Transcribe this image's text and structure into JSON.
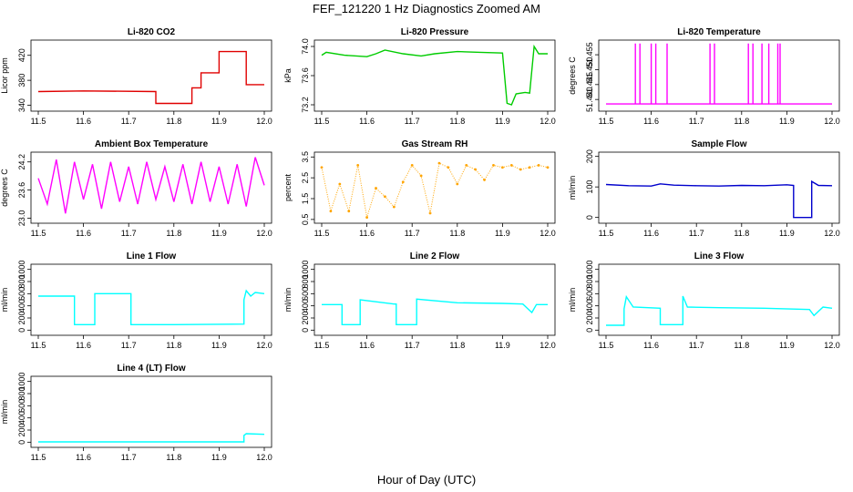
{
  "figure": {
    "title": "FEF_121220  1 Hz Diagnostics Zoomed AM",
    "xlabel": "Hour of Day (UTC)"
  },
  "chart_data": [
    {
      "type": "line",
      "title": "Li-820 CO2",
      "ylabel": "Licor ppm",
      "color": "#e00000",
      "xlim": [
        11.5,
        12.0
      ],
      "ylim": [
        335,
        440
      ],
      "xticks": [
        "11.5",
        "11.6",
        "11.7",
        "11.8",
        "11.9",
        "12.0"
      ],
      "yticks": [
        "340",
        "380",
        "420"
      ],
      "series": [
        {
          "x": [
            11.5,
            11.6,
            11.76,
            11.76,
            11.84,
            11.84,
            11.86,
            11.86,
            11.9,
            11.9,
            11.96,
            11.96,
            12.0
          ],
          "y": [
            362,
            363,
            362,
            343,
            343,
            368,
            368,
            392,
            392,
            426,
            426,
            373,
            373
          ]
        }
      ]
    },
    {
      "type": "line",
      "title": "Li-820 Pressure",
      "ylabel": "kPa",
      "color": "#00cc00",
      "xlim": [
        11.5,
        12.0
      ],
      "ylim": [
        73.15,
        74.05
      ],
      "xticks": [
        "11.5",
        "11.6",
        "11.7",
        "11.8",
        "11.9",
        "12.0"
      ],
      "yticks": [
        "73.2",
        "73.6",
        "74.0"
      ],
      "series": [
        {
          "x": [
            11.5,
            11.51,
            11.55,
            11.6,
            11.62,
            11.64,
            11.68,
            11.72,
            11.75,
            11.8,
            11.85,
            11.9,
            11.91,
            11.92,
            11.93,
            11.95,
            11.96,
            11.97,
            11.98,
            12.0
          ],
          "y": [
            73.88,
            73.92,
            73.88,
            73.86,
            73.9,
            73.95,
            73.9,
            73.87,
            73.9,
            73.93,
            73.92,
            73.91,
            73.22,
            73.2,
            73.35,
            73.37,
            73.36,
            74.0,
            73.9,
            73.9
          ]
        }
      ]
    },
    {
      "type": "line",
      "title": "Li-820 Temperature",
      "ylabel": "degrees C",
      "color": "#ff00ff",
      "xlim": [
        11.5,
        12.0
      ],
      "ylim": [
        51.437,
        51.459
      ],
      "xticks": [
        "11.5",
        "11.6",
        "11.7",
        "11.8",
        "11.9",
        "12.0"
      ],
      "yticks": [
        "51.440",
        "51.445",
        "51.450",
        "51.455"
      ],
      "series": [
        {
          "x": [
            11.5,
            11.565,
            11.565,
            11.565,
            11.575,
            11.575,
            11.575,
            11.6,
            11.6,
            11.6,
            11.61,
            11.61,
            11.61,
            11.635,
            11.635,
            11.635,
            11.73,
            11.73,
            11.73,
            11.74,
            11.74,
            11.74,
            11.815,
            11.815,
            11.815,
            11.825,
            11.825,
            11.825,
            11.845,
            11.845,
            11.845,
            11.86,
            11.86,
            11.86,
            11.88,
            11.88,
            11.88,
            11.885,
            11.885,
            11.885,
            12.0
          ],
          "y": [
            51.4385,
            51.4385,
            51.4588,
            51.4385,
            51.4385,
            51.4588,
            51.4385,
            51.4385,
            51.4588,
            51.4385,
            51.4385,
            51.4588,
            51.4385,
            51.4385,
            51.4588,
            51.4385,
            51.4385,
            51.4588,
            51.4385,
            51.4385,
            51.4588,
            51.4385,
            51.4385,
            51.4588,
            51.4385,
            51.4385,
            51.4588,
            51.4385,
            51.4385,
            51.4588,
            51.4385,
            51.4385,
            51.4588,
            51.4385,
            51.4385,
            51.4588,
            51.4385,
            51.4385,
            51.4588,
            51.4385,
            51.4385
          ]
        }
      ]
    },
    {
      "type": "line",
      "title": "Ambient Box Temperature",
      "ylabel": "degrees C",
      "color": "#ff00ff",
      "xlim": [
        11.5,
        12.0
      ],
      "ylim": [
        22.95,
        24.35
      ],
      "xticks": [
        "11.5",
        "11.6",
        "11.7",
        "11.8",
        "11.9",
        "12.0"
      ],
      "yticks": [
        "23.0",
        "23.6",
        "24.2"
      ],
      "series": [
        {
          "x": [
            11.5,
            11.52,
            11.54,
            11.56,
            11.58,
            11.6,
            11.62,
            11.64,
            11.66,
            11.68,
            11.7,
            11.72,
            11.74,
            11.76,
            11.78,
            11.8,
            11.82,
            11.84,
            11.86,
            11.88,
            11.9,
            11.92,
            11.94,
            11.96,
            11.98,
            12.0
          ],
          "y": [
            23.85,
            23.3,
            24.25,
            23.1,
            24.2,
            23.4,
            24.15,
            23.2,
            24.2,
            23.35,
            24.1,
            23.3,
            24.2,
            23.4,
            24.1,
            23.35,
            24.15,
            23.3,
            24.2,
            23.35,
            24.1,
            23.3,
            24.15,
            23.25,
            24.3,
            23.7
          ]
        }
      ]
    },
    {
      "type": "scatter",
      "title": "Gas Stream RH",
      "ylabel": "percent",
      "color": "#ffa500",
      "xlim": [
        11.5,
        12.0
      ],
      "ylim": [
        0.45,
        3.6
      ],
      "xticks": [
        "11.5",
        "11.6",
        "11.7",
        "11.8",
        "11.9",
        "12.0"
      ],
      "yticks": [
        "0.5",
        "1.5",
        "2.5",
        "3.5"
      ],
      "series": [
        {
          "x": [
            11.5,
            11.52,
            11.54,
            11.56,
            11.58,
            11.6,
            11.62,
            11.64,
            11.66,
            11.68,
            11.7,
            11.72,
            11.74,
            11.76,
            11.78,
            11.8,
            11.82,
            11.84,
            11.86,
            11.88,
            11.9,
            11.92,
            11.94,
            11.96,
            11.98,
            12.0
          ],
          "y": [
            3.0,
            0.9,
            2.2,
            0.9,
            3.1,
            0.6,
            2.0,
            1.6,
            1.1,
            2.3,
            3.1,
            2.6,
            0.8,
            3.2,
            3.0,
            2.2,
            3.1,
            2.9,
            2.4,
            3.1,
            3.0,
            3.1,
            2.9,
            3.0,
            3.1,
            3.0
          ]
        }
      ]
    },
    {
      "type": "line",
      "title": "Sample Flow",
      "ylabel": "ml/min",
      "color": "#0000cc",
      "xlim": [
        11.5,
        12.0
      ],
      "ylim": [
        -10,
        205
      ],
      "xticks": [
        "11.5",
        "11.6",
        "11.7",
        "11.8",
        "11.9",
        "12.0"
      ],
      "yticks": [
        "0",
        "100",
        "200"
      ],
      "series": [
        {
          "x": [
            11.5,
            11.55,
            11.6,
            11.62,
            11.65,
            11.7,
            11.75,
            11.8,
            11.85,
            11.9,
            11.915,
            11.915,
            11.95,
            11.955,
            11.955,
            11.97,
            12.0
          ],
          "y": [
            108,
            104,
            103,
            110,
            106,
            104,
            103,
            105,
            104,
            107,
            105,
            0,
            0,
            0,
            118,
            105,
            104
          ]
        }
      ]
    },
    {
      "type": "line",
      "title": "Line 1 Flow",
      "ylabel": "ml/min",
      "color": "#00ffff",
      "xlim": [
        11.5,
        12.0
      ],
      "ylim": [
        -40,
        1040
      ],
      "xticks": [
        "11.5",
        "11.6",
        "11.7",
        "11.8",
        "11.9",
        "12.0"
      ],
      "yticks": [
        "0",
        "200",
        "400",
        "600",
        "800",
        "1000"
      ],
      "series": [
        {
          "x": [
            11.5,
            11.58,
            11.58,
            11.625,
            11.625,
            11.7,
            11.705,
            11.705,
            11.8,
            11.955,
            11.955,
            11.96,
            11.97,
            11.98,
            12.0
          ],
          "y": [
            560,
            560,
            90,
            90,
            600,
            600,
            600,
            90,
            90,
            100,
            500,
            650,
            560,
            620,
            600
          ]
        }
      ]
    },
    {
      "type": "line",
      "title": "Line 2 Flow",
      "ylabel": "ml/min",
      "color": "#00ffff",
      "xlim": [
        11.5,
        12.0
      ],
      "ylim": [
        -40,
        1040
      ],
      "xticks": [
        "11.5",
        "11.6",
        "11.7",
        "11.8",
        "11.9",
        "12.0"
      ],
      "yticks": [
        "0",
        "200",
        "400",
        "600",
        "800",
        "1000"
      ],
      "series": [
        {
          "x": [
            11.5,
            11.545,
            11.545,
            11.585,
            11.585,
            11.66,
            11.665,
            11.665,
            11.71,
            11.71,
            11.8,
            11.9,
            11.945,
            11.965,
            11.975,
            12.0
          ],
          "y": [
            420,
            420,
            90,
            90,
            500,
            430,
            430,
            90,
            90,
            510,
            450,
            440,
            430,
            290,
            420,
            420
          ]
        }
      ]
    },
    {
      "type": "line",
      "title": "Line 3 Flow",
      "ylabel": "ml/min",
      "color": "#00ffff",
      "xlim": [
        11.5,
        12.0
      ],
      "ylim": [
        -40,
        1040
      ],
      "xticks": [
        "11.5",
        "11.6",
        "11.7",
        "11.8",
        "11.9",
        "12.0"
      ],
      "yticks": [
        "0",
        "200",
        "400",
        "600",
        "800",
        "1000"
      ],
      "series": [
        {
          "x": [
            11.5,
            11.54,
            11.54,
            11.545,
            11.56,
            11.62,
            11.62,
            11.67,
            11.67,
            11.68,
            11.75,
            11.85,
            11.95,
            11.96,
            11.98,
            12.0
          ],
          "y": [
            80,
            80,
            350,
            550,
            380,
            360,
            90,
            90,
            560,
            380,
            370,
            360,
            340,
            240,
            380,
            360
          ]
        }
      ]
    },
    {
      "type": "line",
      "title": "Line 4 (LT) Flow",
      "ylabel": "ml/min",
      "color": "#00ffff",
      "xlim": [
        11.5,
        12.0
      ],
      "ylim": [
        -40,
        1040
      ],
      "xticks": [
        "11.5",
        "11.6",
        "11.7",
        "11.8",
        "11.9",
        "12.0"
      ],
      "yticks": [
        "0",
        "200",
        "400",
        "600",
        "800",
        "1000"
      ],
      "series": [
        {
          "x": [
            11.5,
            11.9,
            11.955,
            11.955,
            11.96,
            12.0
          ],
          "y": [
            5,
            5,
            5,
            110,
            140,
            130
          ]
        }
      ]
    }
  ]
}
